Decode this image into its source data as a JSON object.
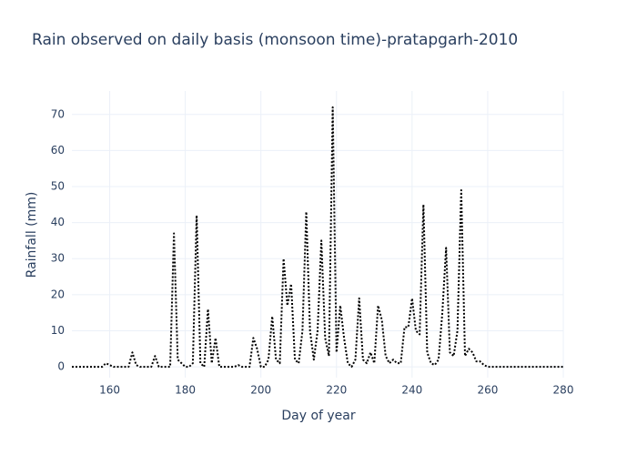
{
  "chart_data": {
    "type": "line",
    "title": "Rain observed on daily basis (monsoon time)-pratapgarh-2010",
    "x_label": "Day of year",
    "y_label": "Rainfall (mm)",
    "x": [
      150,
      151,
      152,
      153,
      154,
      155,
      156,
      157,
      158,
      159,
      160,
      161,
      162,
      163,
      164,
      165,
      166,
      167,
      168,
      169,
      170,
      171,
      172,
      173,
      174,
      175,
      176,
      177,
      178,
      179,
      180,
      181,
      182,
      183,
      184,
      185,
      186,
      187,
      188,
      189,
      190,
      191,
      192,
      193,
      194,
      195,
      196,
      197,
      198,
      199,
      200,
      201,
      202,
      203,
      204,
      205,
      206,
      207,
      208,
      209,
      210,
      211,
      212,
      213,
      214,
      215,
      216,
      217,
      218,
      219,
      220,
      221,
      222,
      223,
      224,
      225,
      226,
      227,
      228,
      229,
      230,
      231,
      232,
      233,
      234,
      235,
      236,
      237,
      238,
      239,
      240,
      241,
      242,
      243,
      244,
      245,
      246,
      247,
      248,
      249,
      250,
      251,
      252,
      253,
      254,
      255,
      256,
      257,
      258,
      259,
      260,
      261,
      262,
      263,
      264,
      265,
      266,
      267,
      268,
      269,
      270,
      271,
      272,
      273,
      274,
      275,
      276,
      277,
      278,
      279,
      280
    ],
    "series": [
      {
        "color": "#000000",
        "values": [
          0,
          0,
          0,
          0,
          0,
          0,
          0,
          0,
          0,
          1,
          0.5,
          0,
          0,
          0,
          0,
          0,
          4,
          0.5,
          0,
          0,
          0,
          0,
          3,
          0,
          0,
          0,
          0,
          37,
          2,
          1,
          0,
          0,
          1,
          42,
          1,
          0,
          16,
          1,
          8,
          0,
          0,
          0,
          0,
          0,
          0.5,
          0,
          0,
          0,
          8,
          5,
          0,
          0,
          2,
          14,
          2,
          1,
          30,
          17,
          23,
          2,
          1,
          10,
          43,
          10,
          2,
          10,
          35,
          8,
          3,
          72,
          4,
          17,
          8,
          1,
          0,
          2,
          19,
          2,
          1,
          4,
          1,
          17,
          13,
          3,
          1,
          2,
          1,
          1,
          11,
          11,
          19,
          10,
          9,
          45,
          4,
          1,
          0.5,
          2,
          15,
          33,
          4,
          3,
          10,
          49,
          3,
          5,
          4,
          1.5,
          1.5,
          0.5,
          0,
          0,
          0,
          0,
          0,
          0,
          0,
          0,
          0,
          0,
          0,
          0,
          0,
          0,
          0,
          0,
          0,
          0,
          0,
          0,
          0
        ]
      }
    ],
    "xlim": [
      150,
      280
    ],
    "xticks": [
      160,
      180,
      200,
      220,
      240,
      260,
      280
    ],
    "ylim": [
      -3,
      76.5
    ],
    "yticks": [
      0,
      10,
      20,
      30,
      40,
      50,
      60,
      70
    ],
    "grid": true
  }
}
